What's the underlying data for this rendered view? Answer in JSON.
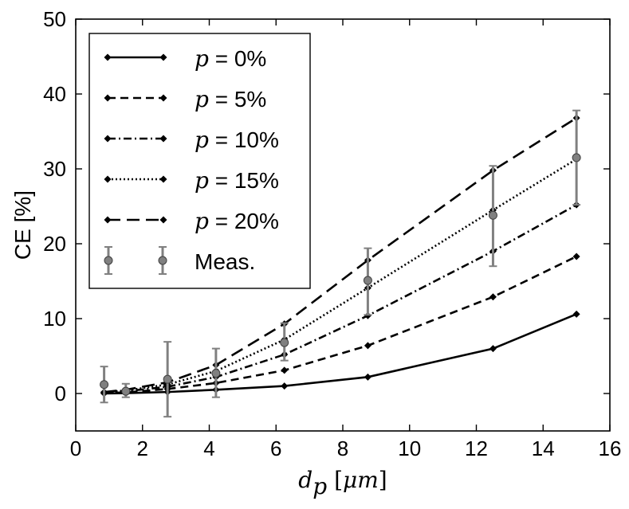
{
  "chart_data": {
    "type": "line",
    "title": "",
    "xlabel": "d_p [μm]",
    "ylabel": "CE [%]",
    "xlim": [
      0,
      16
    ],
    "ylim": [
      -5,
      50
    ],
    "xticks": [
      0,
      2,
      4,
      6,
      8,
      10,
      12,
      14,
      16
    ],
    "yticks": [
      0,
      10,
      20,
      30,
      40,
      50
    ],
    "x": [
      0.85,
      1.5,
      2.75,
      4.2,
      6.25,
      8.75,
      12.5,
      15.0
    ],
    "legend_position": "top-left",
    "series": [
      {
        "name": "p = 0%",
        "var": "p",
        "label_rest": " = 0%",
        "dash": "",
        "values": [
          0.0,
          0.05,
          0.2,
          0.5,
          1.0,
          2.2,
          6.0,
          10.6
        ]
      },
      {
        "name": "p = 5%",
        "var": "p",
        "label_rest": " = 5%",
        "dash": "10,6",
        "values": [
          0.05,
          0.15,
          0.6,
          1.4,
          3.1,
          6.4,
          12.9,
          18.3
        ]
      },
      {
        "name": "p = 10%",
        "var": "p",
        "label_rest": " = 10%",
        "dash": "10,4,2,4",
        "values": [
          0.1,
          0.3,
          0.9,
          2.2,
          5.2,
          10.4,
          19.0,
          25.2
        ]
      },
      {
        "name": "p = 15%",
        "var": "p",
        "label_rest": " = 15%",
        "dash": "2,3",
        "values": [
          0.15,
          0.4,
          1.2,
          3.0,
          7.2,
          14.1,
          24.5,
          31.3
        ]
      },
      {
        "name": "p = 20%",
        "var": "p",
        "label_rest": " = 20%",
        "dash": "16,8",
        "values": [
          0.2,
          0.5,
          1.5,
          3.8,
          9.3,
          17.8,
          29.8,
          36.8
        ]
      }
    ],
    "measured": {
      "name": "Meas.",
      "x": [
        0.85,
        1.5,
        2.75,
        4.2,
        6.25,
        8.75,
        12.5,
        15.0
      ],
      "y": [
        1.2,
        0.3,
        1.9,
        2.7,
        6.8,
        15.1,
        23.8,
        31.5
      ],
      "err_low": [
        2.4,
        0.8,
        5.0,
        3.2,
        2.4,
        4.6,
        6.8,
        6.3
      ],
      "err_high": [
        2.4,
        1.0,
        5.0,
        3.3,
        2.6,
        4.3,
        6.6,
        6.3
      ]
    }
  }
}
